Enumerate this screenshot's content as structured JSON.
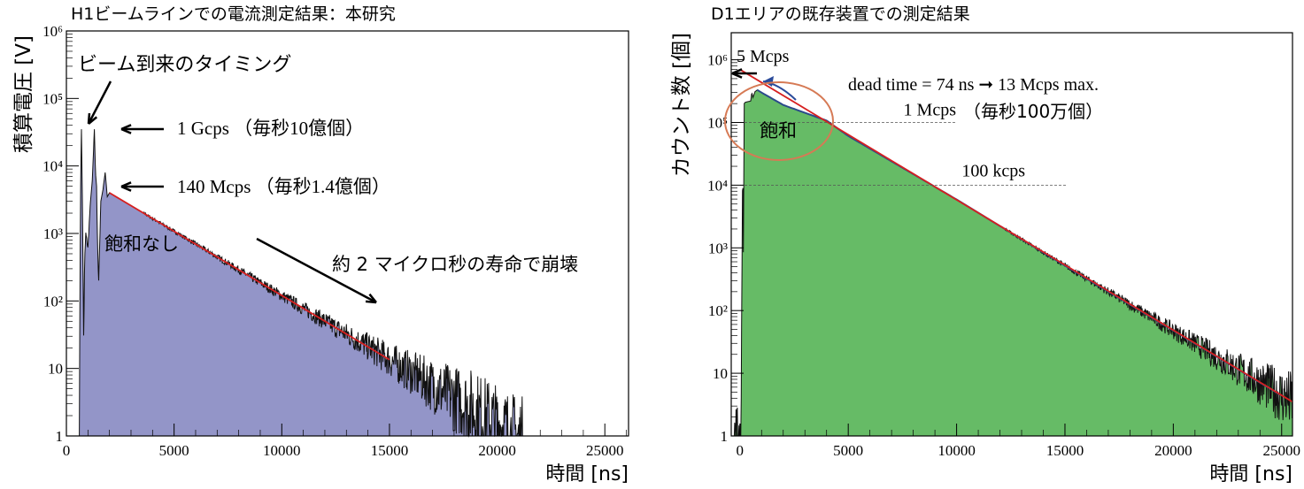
{
  "chart_data": [
    {
      "type": "area",
      "title": "H1ビームラインでの電流測定結果：本研究",
      "xlabel": "時間 [ns]",
      "ylabel": "積算電圧 [V]",
      "xlim": [
        0,
        26100
      ],
      "ylim": [
        1,
        1000000
      ],
      "yscale": "log",
      "xticks": [
        "0",
        "5000",
        "10000",
        "15000",
        "20000",
        "25000"
      ],
      "yticks": [
        "1",
        "10",
        "10^2",
        "10^3",
        "10^4",
        "10^5",
        "10^6"
      ],
      "fill_color": "#9395c8",
      "fit_color": "#d62020",
      "series": [
        {
          "x": [
            600,
            650,
            700,
            750,
            800,
            850,
            900,
            1000,
            1100,
            1200,
            1300,
            1350,
            1400,
            1450,
            1500,
            1600,
            1700,
            1800,
            1900,
            2000,
            4000,
            6000,
            8000,
            10000,
            12000,
            14000,
            16000,
            18000,
            20000,
            21000,
            21200
          ],
          "y": [
            1,
            3000,
            35000,
            2000,
            30,
            400,
            1000,
            600,
            2500,
            6000,
            35000,
            8000,
            5000,
            600,
            200,
            3000,
            4500,
            8000,
            3500,
            4000,
            1670,
            700,
            290,
            120,
            50,
            21,
            8.7,
            3.6,
            1.5,
            1,
            1
          ]
        }
      ],
      "fit": {
        "x": [
          2000,
          15000
        ],
        "y": [
          4000,
          13.5
        ]
      },
      "annotations": {
        "beam": "ビーム到来のタイミング",
        "gcps": "1 Gcps （毎秒10億個）",
        "mcps": "140 Mcps （毎秒1.4億個）",
        "nosat": "飽和なし",
        "decay": "約 2 マイクロ秒の寿命で崩壊"
      }
    },
    {
      "type": "area",
      "title": "D1エリアの既存装置での測定結果",
      "xlabel": "時間 [ns]",
      "ylabel": "カウント数 [個]",
      "xlim": [
        -400,
        25500
      ],
      "ylim": [
        1,
        2700000
      ],
      "yscale": "log",
      "xticks": [
        "0",
        "5000",
        "10000",
        "15000",
        "20000",
        "25000"
      ],
      "yticks": [
        "1",
        "10",
        "10^2",
        "10^3",
        "10^4",
        "10^5",
        "10^6"
      ],
      "fill_color": "#66bb66",
      "line_color": "#2a4a8a",
      "fit_color": "#d62020",
      "series": [
        {
          "x": [
            -300,
            50,
            100,
            130,
            160,
            200,
            250,
            500,
            550,
            600,
            700,
            800,
            1000,
            2000,
            4000,
            5000,
            10000,
            15000,
            20000,
            25000,
            25500
          ],
          "y": [
            1,
            1,
            600,
            30000,
            800,
            200000,
            210000,
            220000,
            300000,
            250000,
            310000,
            330000,
            300000,
            190000,
            107000,
            61000,
            5900,
            520,
            48,
            4.4,
            3.5
          ]
        }
      ],
      "fit": {
        "x": [
          0,
          25500
        ],
        "y": [
          700000,
          3.5
        ]
      },
      "reference_lines": [
        {
          "value": 100000,
          "label": "1 Mcps"
        },
        {
          "value": 10000,
          "label": "100 kcps"
        }
      ],
      "annotations": {
        "five": "5 Mcps",
        "dead": "dead time = 74 ns ➞ 13 Mcps max.",
        "oku": "（毎秒100万個）",
        "sat": "飽和"
      }
    }
  ]
}
